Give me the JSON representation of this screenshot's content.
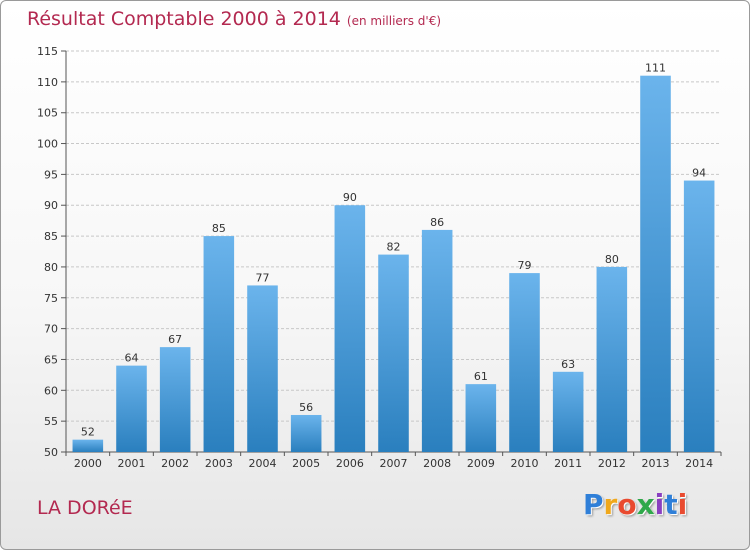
{
  "title": "Résultat Comptable 2000 à 2014",
  "title_unit": "(en milliers d'€)",
  "place": "LA DORéE",
  "logo": {
    "letters": [
      "P",
      "r",
      "o",
      "x",
      "i",
      "t",
      "i"
    ],
    "colors": [
      "#2f7fd8",
      "#f0a81b",
      "#e94a2f",
      "#2fa84a",
      "#8a3fc0",
      "#2f7fd8",
      "#e94a2f"
    ]
  },
  "colors": {
    "bar_light": "#6bb4ec",
    "bar_dark": "#2a7fbe",
    "title": "#b32950"
  },
  "chart_data": {
    "type": "bar",
    "title": "Résultat Comptable 2000 à 2014",
    "categories": [
      "2000",
      "2001",
      "2002",
      "2003",
      "2004",
      "2005",
      "2006",
      "2007",
      "2008",
      "2009",
      "2010",
      "2011",
      "2012",
      "2013",
      "2014"
    ],
    "values": [
      52,
      64,
      67,
      85,
      77,
      56,
      90,
      82,
      86,
      61,
      79,
      63,
      80,
      111,
      94
    ],
    "ylim": [
      50,
      115
    ],
    "yticks": [
      50,
      55,
      60,
      65,
      70,
      75,
      80,
      85,
      90,
      95,
      100,
      105,
      110,
      115
    ],
    "grid": true,
    "show_value_labels": true
  }
}
